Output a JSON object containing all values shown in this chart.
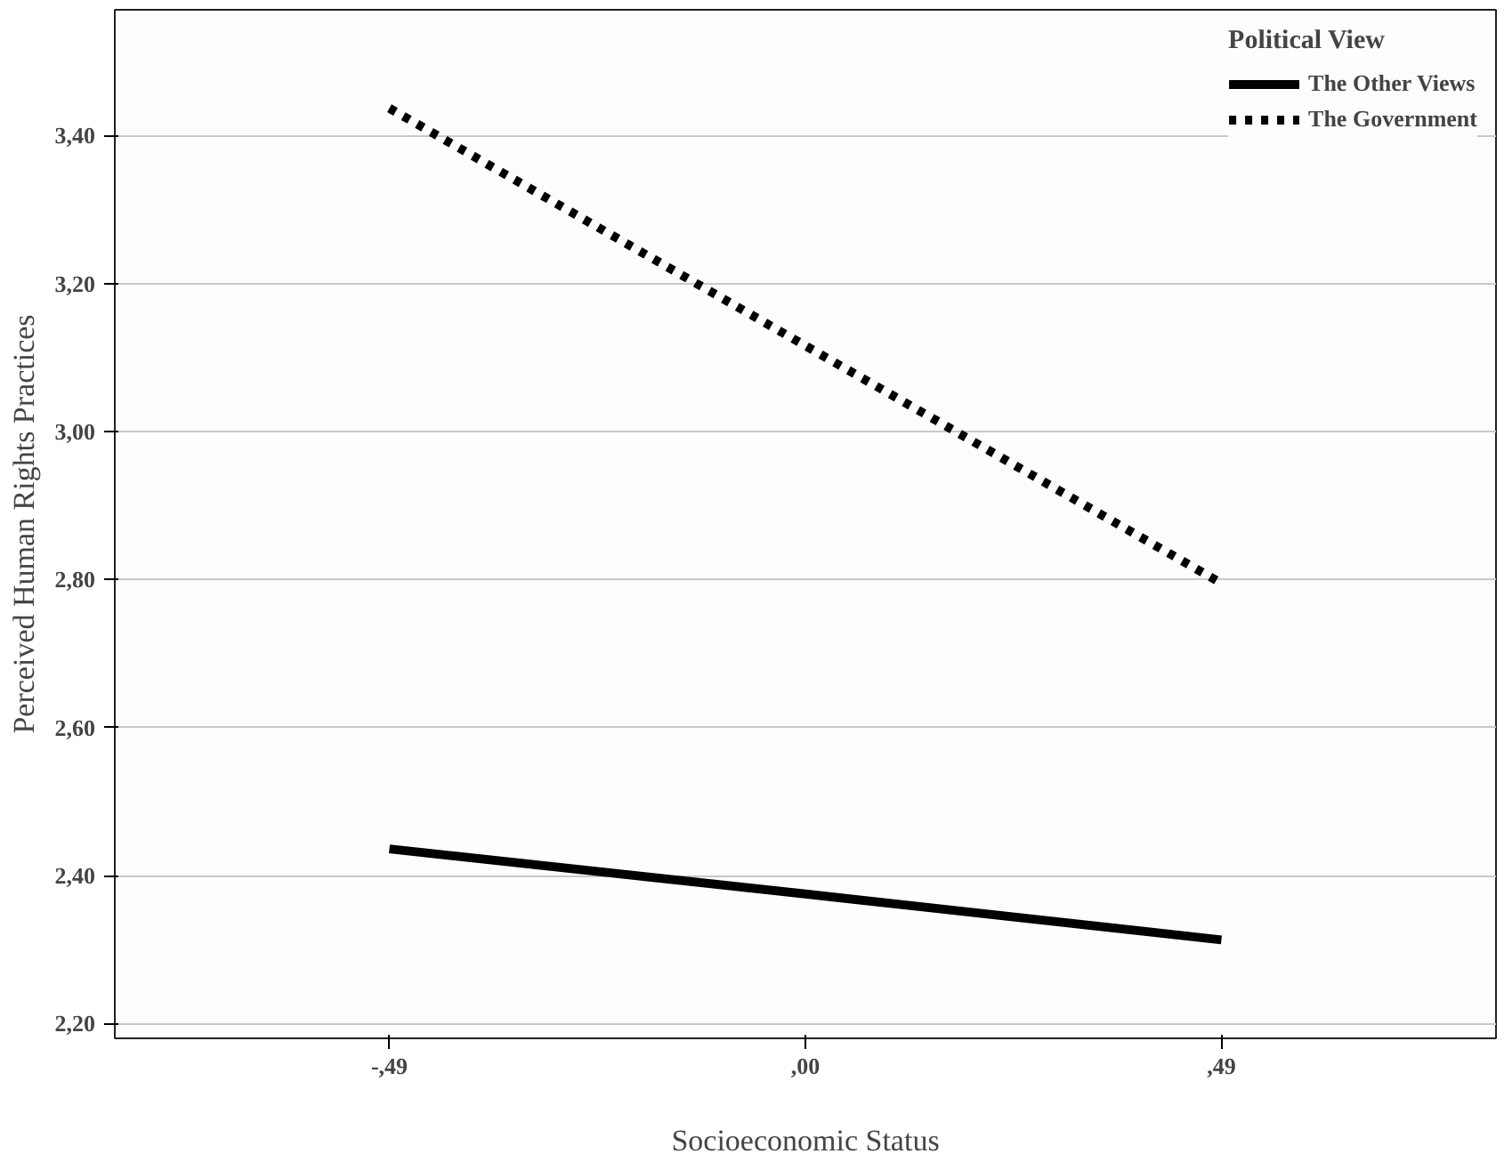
{
  "chart_data": {
    "type": "line",
    "xlabel": "Socioeconomic Status",
    "ylabel": "Perceived Human Rights Practices",
    "legend_title": "Political View",
    "legend": "top right",
    "grid": "y",
    "marker": "none",
    "categories": [
      "-,49",
      ",00",
      ",49"
    ],
    "ylim": [
      2.18,
      3.57
    ],
    "yticks": [
      {
        "value": 2.2,
        "label": "2,20"
      },
      {
        "value": 2.4,
        "label": "2,40"
      },
      {
        "value": 2.6,
        "label": "2,60"
      },
      {
        "value": 2.8,
        "label": "2,80"
      },
      {
        "value": 3.0,
        "label": "3,00"
      },
      {
        "value": 3.2,
        "label": "3,20"
      },
      {
        "value": 3.4,
        "label": "3,40"
      }
    ],
    "series": [
      {
        "name": "The Other Views",
        "color": "#000000",
        "line_style": "solid",
        "values": [
          2.436,
          2.375,
          2.313
        ]
      },
      {
        "name": "The Government",
        "color": "#000000",
        "line_style": "dotted",
        "values": [
          3.437,
          3.116,
          2.795
        ]
      }
    ]
  }
}
